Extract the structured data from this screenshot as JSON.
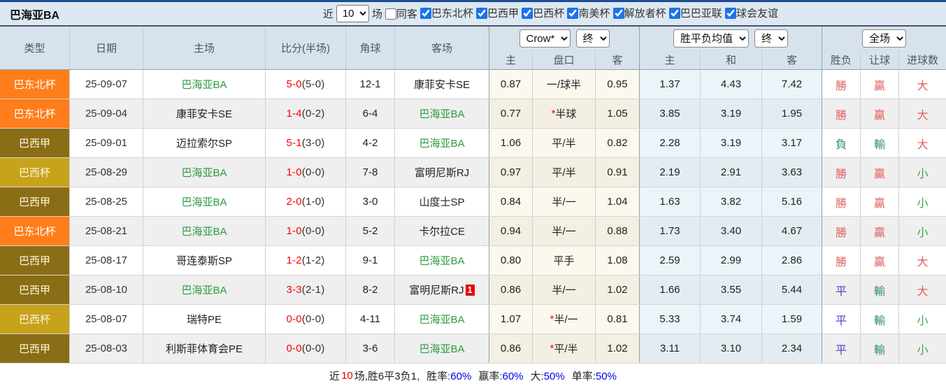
{
  "title": "巴海亚BA",
  "colors": {
    "subject_team": "#2e9b3f",
    "score_red": "#ff0000",
    "checkbox_blue": "#1a73e8",
    "footer_value_blue": "#0000ee",
    "footer_count_red": "#e00000"
  },
  "type_colors": {
    "巴东北杯": {
      "bg": "#ff7d1a",
      "fg": "#ffffff"
    },
    "巴西甲": {
      "bg": "#8b6d16",
      "fg": "#fcf6d8"
    },
    "巴西杯": {
      "bg": "#c7a21b",
      "fg": "#fcf6d8"
    }
  },
  "result_colors": {
    "勝": "#e25d5d",
    "平": "#4747ce",
    "負": "#338e7a",
    "贏": "#e25d5d",
    "輸": "#338e7a",
    "大": "#e25d5d",
    "小": "#3fa34d"
  },
  "filter_bar": {
    "recent_prefix": "近",
    "recent_value": "10",
    "recent_suffix": "场",
    "same_venue": {
      "label": "同客",
      "checked": false
    },
    "competitions": [
      {
        "label": "巴东北杯",
        "checked": true
      },
      {
        "label": "巴西甲",
        "checked": true
      },
      {
        "label": "巴西杯",
        "checked": true
      },
      {
        "label": "南美杯",
        "checked": true
      },
      {
        "label": "解放者杯",
        "checked": true
      },
      {
        "label": "巴巴亚联",
        "checked": true
      },
      {
        "label": "球会友谊",
        "checked": true
      }
    ]
  },
  "table": {
    "columns": [
      "类型",
      "日期",
      "主场",
      "比分(半场)",
      "角球",
      "客场"
    ],
    "odds_groups": [
      {
        "select_main": "Crow*",
        "select_period": "终",
        "sub": [
          "主",
          "盘口",
          "客"
        ]
      },
      {
        "select_main": "胜平负均值",
        "select_period": "终",
        "sub": [
          "主",
          "和",
          "客"
        ]
      },
      {
        "select_main": "全场",
        "select_period": "",
        "sub": [
          "胜负",
          "让球",
          "进球数"
        ]
      }
    ],
    "rows": [
      {
        "type": "巴东北杯",
        "date": "25-09-07",
        "home": "巴海亚BA",
        "home_subject": true,
        "score": "5-0",
        "half": "(5-0)",
        "corner": "12-1",
        "away": "康菲安卡SE",
        "away_subject": false,
        "away_badge": "",
        "asian_home": "0.87",
        "handicap_star": "",
        "handicap": "一/球半",
        "asian_away": "0.95",
        "euro_home": "1.37",
        "euro_draw": "4.43",
        "euro_away": "7.42",
        "result": "勝",
        "handicap_result": "贏",
        "goals": "大"
      },
      {
        "type": "巴东北杯",
        "date": "25-09-04",
        "home": "康菲安卡SE",
        "home_subject": false,
        "score": "1-4",
        "half": "(0-2)",
        "corner": "6-4",
        "away": "巴海亚BA",
        "away_subject": true,
        "away_badge": "",
        "asian_home": "0.77",
        "handicap_star": "*",
        "handicap": "半球",
        "asian_away": "1.05",
        "euro_home": "3.85",
        "euro_draw": "3.19",
        "euro_away": "1.95",
        "result": "勝",
        "handicap_result": "贏",
        "goals": "大"
      },
      {
        "type": "巴西甲",
        "date": "25-09-01",
        "home": "迈拉索尔SP",
        "home_subject": false,
        "score": "5-1",
        "half": "(3-0)",
        "corner": "4-2",
        "away": "巴海亚BA",
        "away_subject": true,
        "away_badge": "",
        "asian_home": "1.06",
        "handicap_star": "",
        "handicap": "平/半",
        "asian_away": "0.82",
        "euro_home": "2.28",
        "euro_draw": "3.19",
        "euro_away": "3.17",
        "result": "負",
        "handicap_result": "輸",
        "goals": "大"
      },
      {
        "type": "巴西杯",
        "date": "25-08-29",
        "home": "巴海亚BA",
        "home_subject": true,
        "score": "1-0",
        "half": "(0-0)",
        "corner": "7-8",
        "away": "富明尼斯RJ",
        "away_subject": false,
        "away_badge": "",
        "asian_home": "0.97",
        "handicap_star": "",
        "handicap": "平/半",
        "asian_away": "0.91",
        "euro_home": "2.19",
        "euro_draw": "2.91",
        "euro_away": "3.63",
        "result": "勝",
        "handicap_result": "贏",
        "goals": "小"
      },
      {
        "type": "巴西甲",
        "date": "25-08-25",
        "home": "巴海亚BA",
        "home_subject": true,
        "score": "2-0",
        "half": "(1-0)",
        "corner": "3-0",
        "away": "山度士SP",
        "away_subject": false,
        "away_badge": "",
        "asian_home": "0.84",
        "handicap_star": "",
        "handicap": "半/一",
        "asian_away": "1.04",
        "euro_home": "1.63",
        "euro_draw": "3.82",
        "euro_away": "5.16",
        "result": "勝",
        "handicap_result": "贏",
        "goals": "小"
      },
      {
        "type": "巴东北杯",
        "date": "25-08-21",
        "home": "巴海亚BA",
        "home_subject": true,
        "score": "1-0",
        "half": "(0-0)",
        "corner": "5-2",
        "away": "卡尔拉CE",
        "away_subject": false,
        "away_badge": "",
        "asian_home": "0.94",
        "handicap_star": "",
        "handicap": "半/一",
        "asian_away": "0.88",
        "euro_home": "1.73",
        "euro_draw": "3.40",
        "euro_away": "4.67",
        "result": "勝",
        "handicap_result": "贏",
        "goals": "小"
      },
      {
        "type": "巴西甲",
        "date": "25-08-17",
        "home": "哥连泰斯SP",
        "home_subject": false,
        "score": "1-2",
        "half": "(1-2)",
        "corner": "9-1",
        "away": "巴海亚BA",
        "away_subject": true,
        "away_badge": "",
        "asian_home": "0.80",
        "handicap_star": "",
        "handicap": "平手",
        "asian_away": "1.08",
        "euro_home": "2.59",
        "euro_draw": "2.99",
        "euro_away": "2.86",
        "result": "勝",
        "handicap_result": "贏",
        "goals": "大"
      },
      {
        "type": "巴西甲",
        "date": "25-08-10",
        "home": "巴海亚BA",
        "home_subject": true,
        "score": "3-3",
        "half": "(2-1)",
        "corner": "8-2",
        "away": "富明尼斯RJ",
        "away_subject": false,
        "away_badge": "1",
        "asian_home": "0.86",
        "handicap_star": "",
        "handicap": "半/一",
        "asian_away": "1.02",
        "euro_home": "1.66",
        "euro_draw": "3.55",
        "euro_away": "5.44",
        "result": "平",
        "handicap_result": "輸",
        "goals": "大"
      },
      {
        "type": "巴西杯",
        "date": "25-08-07",
        "home": "瑞特PE",
        "home_subject": false,
        "score": "0-0",
        "half": "(0-0)",
        "corner": "4-11",
        "away": "巴海亚BA",
        "away_subject": true,
        "away_badge": "",
        "asian_home": "1.07",
        "handicap_star": "*",
        "handicap": "半/一",
        "asian_away": "0.81",
        "euro_home": "5.33",
        "euro_draw": "3.74",
        "euro_away": "1.59",
        "result": "平",
        "handicap_result": "輸",
        "goals": "小"
      },
      {
        "type": "巴西甲",
        "date": "25-08-03",
        "home": "利斯菲体育会PE",
        "home_subject": false,
        "score": "0-0",
        "half": "(0-0)",
        "corner": "3-6",
        "away": "巴海亚BA",
        "away_subject": true,
        "away_badge": "",
        "asian_home": "0.86",
        "handicap_star": "*",
        "handicap": "平/半",
        "asian_away": "1.02",
        "euro_home": "3.11",
        "euro_draw": "3.10",
        "euro_away": "2.34",
        "result": "平",
        "handicap_result": "輸",
        "goals": "小"
      }
    ]
  },
  "footer": {
    "prefix": "近",
    "count": "10",
    "summary": "场,胜6平3负1,",
    "stats": [
      {
        "label": "胜率:",
        "value": "60%"
      },
      {
        "label": "赢率:",
        "value": "60%"
      },
      {
        "label": "大:",
        "value": "50%"
      },
      {
        "label": "单率:",
        "value": "50%"
      }
    ]
  }
}
